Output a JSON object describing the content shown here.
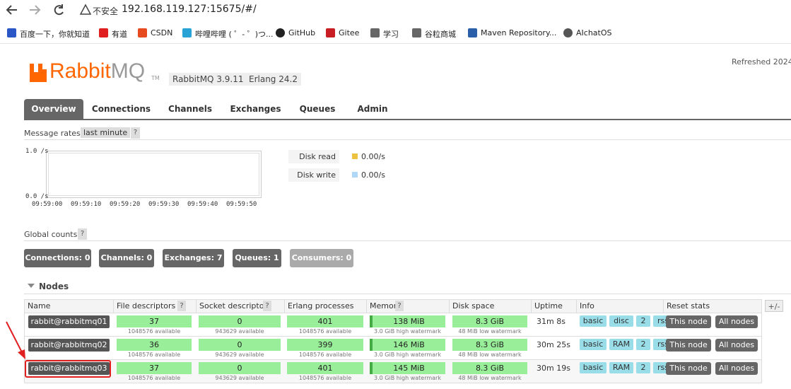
{
  "browser": {
    "security": "不安全",
    "url": "192.168.119.127:15675/#/",
    "bookmarks": [
      "百度一下，你就知道",
      "有道",
      "CSDN",
      "哔哩哔哩 ( ゜- ゜)つ...",
      "GitHub",
      "Gitee",
      "学习",
      "谷粒商城",
      "Maven Repository...",
      "AIchatOS"
    ]
  },
  "header": {
    "logo_main": "Rabbit",
    "logo_suffix": "MQ",
    "trademark": "TM",
    "version": "RabbitMQ 3.9.11",
    "erlang": "Erlang 24.2",
    "refreshed": "Refreshed 2024"
  },
  "tabs": [
    "Overview",
    "Connections",
    "Channels",
    "Exchanges",
    "Queues",
    "Admin"
  ],
  "message_rates": {
    "label": "Message rates",
    "period": "last minute",
    "help": "?",
    "y_labels": [
      "1.0 /s",
      "0.0 /s"
    ],
    "x_labels": [
      "09:59:00",
      "09:59:10",
      "09:59:20",
      "09:59:30",
      "09:59:40",
      "09:59:50"
    ],
    "legend": [
      {
        "name": "Disk read",
        "value": "0.00/s",
        "color": "#edc240"
      },
      {
        "name": "Disk write",
        "value": "0.00/s",
        "color": "#afd8f8"
      }
    ]
  },
  "global_counts": {
    "label": "Global counts",
    "help": "?",
    "items": [
      "Connections: 0",
      "Channels: 0",
      "Exchanges: 7",
      "Queues: 1",
      "Consumers: 0"
    ]
  },
  "nodes": {
    "title": "Nodes",
    "toggle": "+/-",
    "columns": [
      {
        "label": "Name"
      },
      {
        "label": "File descriptors",
        "help": "?"
      },
      {
        "label": "Socket descriptors",
        "help": "?"
      },
      {
        "label": "Erlang processes"
      },
      {
        "label": "Memory",
        "help": "?"
      },
      {
        "label": "Disk space"
      },
      {
        "label": "Uptime"
      },
      {
        "label": "Info"
      },
      {
        "label": "Reset stats"
      }
    ],
    "rows": [
      {
        "name": "rabbit@rabbitmq01",
        "file_descriptors": "37",
        "fd_available": "1048576 available",
        "socket_descriptors": "0",
        "sd_available": "943629 available",
        "erlang_processes": "401",
        "ep_available": "1048576 available",
        "memory": "138 MiB",
        "memory_watermark": "3.0 GiB high watermark",
        "disk_space": "8.3 GiB",
        "disk_watermark": "48 MiB low watermark",
        "uptime": "31m 8s",
        "info": [
          "basic",
          "disc",
          "2",
          "rss"
        ],
        "reset": [
          "This node",
          "All nodes"
        ]
      },
      {
        "name": "rabbit@rabbitmq02",
        "file_descriptors": "36",
        "fd_available": "1048576 available",
        "socket_descriptors": "0",
        "sd_available": "943629 available",
        "erlang_processes": "399",
        "ep_available": "1048576 available",
        "memory": "146 MiB",
        "memory_watermark": "3.0 GiB high watermark",
        "disk_space": "8.3 GiB",
        "disk_watermark": "48 MiB low watermark",
        "uptime": "30m 25s",
        "info": [
          "basic",
          "RAM",
          "2",
          "rss"
        ],
        "reset": [
          "This node",
          "All nodes"
        ]
      },
      {
        "name": "rabbit@rabbitmq03",
        "file_descriptors": "37",
        "fd_available": "1048576 available",
        "socket_descriptors": "0",
        "sd_available": "943629 available",
        "erlang_processes": "401",
        "ep_available": "1048576 available",
        "memory": "145 MiB",
        "memory_watermark": "3.0 GiB high watermark",
        "disk_space": "8.3 GiB",
        "disk_watermark": "48 MiB low watermark",
        "uptime": "30m 19s",
        "info": [
          "basic",
          "RAM",
          "2",
          "rss"
        ],
        "reset": [
          "This node",
          "All nodes"
        ]
      }
    ]
  }
}
